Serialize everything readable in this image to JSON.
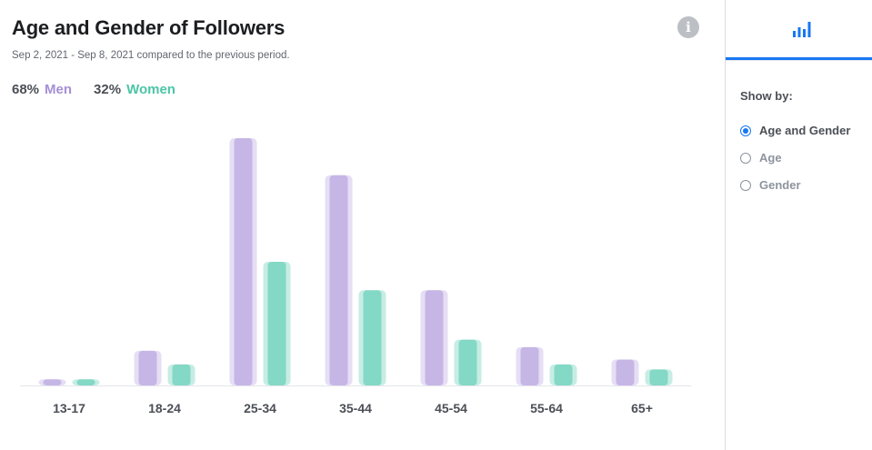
{
  "header": {
    "title": "Age and Gender of Followers",
    "subtitle": "Sep 2, 2021 - Sep 8, 2021 compared to the previous period.",
    "info_icon": "info-icon"
  },
  "legend": {
    "men_pct": "68%",
    "men_label": "Men",
    "women_pct": "32%",
    "women_label": "Women"
  },
  "colors": {
    "men": "#c6b6e6",
    "men_shadow": "#e6def4",
    "women": "#84d8c6",
    "women_shadow": "#c6ede4",
    "accent": "#1877f2"
  },
  "sidebar": {
    "tab_icon": "bar-chart-icon",
    "show_by_label": "Show by:",
    "options": [
      {
        "label": "Age and Gender",
        "selected": true
      },
      {
        "label": "Age",
        "selected": false
      },
      {
        "label": "Gender",
        "selected": false
      }
    ]
  },
  "chart_data": {
    "type": "bar",
    "title": "Age and Gender of Followers",
    "categories": [
      "13-17",
      "18-24",
      "25-34",
      "35-44",
      "45-54",
      "55-64",
      "65+"
    ],
    "series": [
      {
        "name": "Men",
        "values": [
          2.5,
          14,
          100,
          85,
          38.5,
          15.5,
          10.5
        ]
      },
      {
        "name": "Women",
        "values": [
          2.5,
          8.5,
          50,
          38.5,
          18.5,
          8.5,
          6.5
        ]
      }
    ],
    "ylim": [
      0,
      100
    ],
    "grid": false,
    "legend_position": "top-left"
  }
}
